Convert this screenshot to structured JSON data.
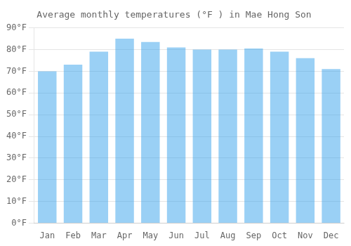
{
  "chart_data": {
    "type": "bar",
    "title": "Average monthly temperatures (°F ) in Mae Hong Son",
    "categories": [
      "Jan",
      "Feb",
      "Mar",
      "Apr",
      "May",
      "Jun",
      "Jul",
      "Aug",
      "Sep",
      "Oct",
      "Nov",
      "Dec"
    ],
    "values": [
      70,
      73,
      79,
      85,
      83.5,
      81,
      80,
      80,
      80.5,
      79,
      76,
      71
    ],
    "ylim": [
      0,
      90
    ],
    "yticks": [
      {
        "value": 0,
        "label": "0°F"
      },
      {
        "value": 10,
        "label": "10°F"
      },
      {
        "value": 20,
        "label": "20°F"
      },
      {
        "value": 30,
        "label": "30°F"
      },
      {
        "value": 40,
        "label": "40°F"
      },
      {
        "value": 50,
        "label": "50°F"
      },
      {
        "value": 60,
        "label": "60°F"
      },
      {
        "value": 70,
        "label": "70°F"
      },
      {
        "value": 80,
        "label": "80°F"
      },
      {
        "value": 90,
        "label": "90°F"
      }
    ],
    "grid": true
  }
}
